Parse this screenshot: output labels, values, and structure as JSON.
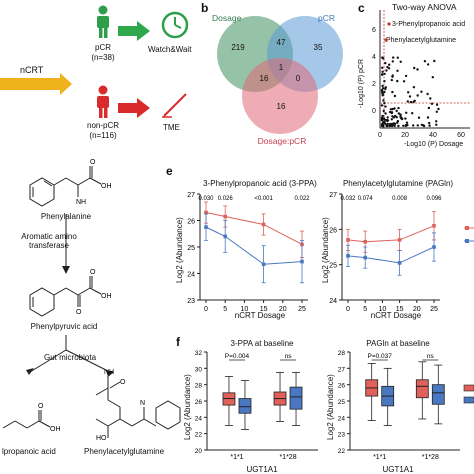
{
  "panel_a": {
    "input": "nCRT",
    "pcr_label": "pCR",
    "pcr_n": "(n=38)",
    "npcr_label": "non-pCR",
    "npcr_n": "(n=116)",
    "outcome_pcr": "Watch&Wait",
    "outcome_npcr": "TME",
    "colors": {
      "pcr": "#2e9e4b",
      "npcr": "#d92b2b",
      "arrow_in": "#f0b21b"
    }
  },
  "panel_b": {
    "label": "b",
    "sets": [
      "Dosage",
      "pCR",
      "Dosage:pCR"
    ],
    "regions": {
      "dosage_only": "219",
      "pcr_only": "35",
      "inter_only": "16",
      "dosage_pcr": "47",
      "dosage_inter": "16",
      "pcr_inter": "0",
      "all": "1"
    },
    "colors": {
      "dosage": "#3f8f5f",
      "pcr": "#5b9bd5",
      "inter": "#e06a78"
    }
  },
  "panel_c": {
    "label": "c",
    "title": "Two-way ANOVA",
    "annot1": "3-Phenylpropanoic acid",
    "annot2": "Phenylacetylglutamine",
    "ylabel": "-Log10 (P) pCR",
    "xlabel": "-Log10 (P) Dosage",
    "yticks": [
      "0",
      "2",
      "4",
      "6"
    ],
    "xticks": [
      "0",
      "20",
      "40",
      "60"
    ]
  },
  "pathway": {
    "compound1": "Phenylalanine",
    "enzyme1": "Aromatic amino transferase",
    "compound2": "Phenylpyruvic acid",
    "enzyme2": "Gut microbiota",
    "compound3": "lpropanoic acid",
    "compound4": "Phenylacetylglutamine"
  },
  "panel_e": {
    "label": "e",
    "colors": {
      "red": "#e0605a",
      "blue": "#4a78c0"
    },
    "chart_data": [
      {
        "type": "line",
        "title": "3-Phenylpropanoic acid (3-PPA)",
        "xlabel": "nCRT Dosage",
        "ylabel": "Log2 (Abundance)",
        "x": [
          0,
          5,
          15,
          25
        ],
        "xticks": [
          "0",
          "5",
          "10",
          "15",
          "20",
          "25"
        ],
        "yticks": [
          "23",
          "24",
          "25",
          "26",
          "27"
        ],
        "ylim": [
          23,
          27
        ],
        "pvalues": [
          "0.030",
          "0.026",
          "<0.001",
          "0.022"
        ],
        "series": [
          {
            "values": [
              26.3,
              26.15,
              25.85,
              25.1
            ],
            "err": [
              0.4,
              0.4,
              0.4,
              0.5
            ]
          },
          {
            "values": [
              25.75,
              25.4,
              24.35,
              24.45
            ],
            "err": [
              0.5,
              0.6,
              0.7,
              0.8
            ]
          }
        ]
      },
      {
        "type": "line",
        "title": "Phenylacetylglutamine (PAGln)",
        "xlabel": "nCRT Dosage",
        "ylabel": "Log2 (Abundance)",
        "x": [
          0,
          5,
          15,
          25
        ],
        "xticks": [
          "0",
          "5",
          "10",
          "15",
          "20",
          "25"
        ],
        "yticks": [
          "24",
          "25",
          "26",
          "27"
        ],
        "ylim": [
          24,
          27
        ],
        "pvalues": [
          "0.032",
          "0.074",
          "0.008",
          "0.096"
        ],
        "series": [
          {
            "values": [
              25.7,
              25.65,
              25.7,
              26.1
            ],
            "err": [
              0.3,
              0.3,
              0.3,
              0.4
            ]
          },
          {
            "values": [
              25.25,
              25.2,
              25.05,
              25.5
            ],
            "err": [
              0.3,
              0.3,
              0.35,
              0.4
            ]
          }
        ]
      }
    ]
  },
  "panel_f": {
    "label": "f",
    "chart_data": [
      {
        "type": "box",
        "title": "3-PPA at baseline",
        "ylabel": "Log2 (Abundance)",
        "xlabel": "UGT1A1",
        "categories": [
          "*1*1",
          "*1*28"
        ],
        "yticks": [
          "20",
          "22",
          "24",
          "26",
          "28",
          "30",
          "32"
        ],
        "ylim": [
          20,
          32
        ],
        "annotations": [
          "P=0.004",
          "ns"
        ],
        "series": [
          {
            "name": "red",
            "boxes": [
              [
                23,
                25.5,
                26.3,
                27,
                29
              ],
              [
                23.5,
                25.5,
                26.3,
                27.1,
                29.5
              ]
            ]
          },
          {
            "name": "blue",
            "boxes": [
              [
                22.5,
                24.5,
                25.3,
                26.3,
                28.5
              ],
              [
                23,
                25,
                26.5,
                27.7,
                29.5
              ]
            ]
          }
        ]
      },
      {
        "type": "box",
        "title": "PAGln at baseline",
        "ylabel": "Log2 (Abundance)",
        "xlabel": "UGT1A1",
        "categories": [
          "*1*1",
          "*1*28"
        ],
        "yticks": [
          "22",
          "23",
          "24",
          "25",
          "26",
          "27",
          "28"
        ],
        "ylim": [
          22,
          28
        ],
        "annotations": [
          "P=0.037",
          "ns"
        ],
        "series": [
          {
            "name": "red",
            "boxes": [
              [
                23.8,
                25.3,
                25.8,
                26.3,
                27.3
              ],
              [
                23.9,
                25.2,
                25.9,
                26.3,
                27.4
              ]
            ]
          },
          {
            "name": "blue",
            "boxes": [
              [
                23.5,
                24.7,
                25.3,
                25.9,
                27
              ],
              [
                23.6,
                24.8,
                25.5,
                26,
                27.2
              ]
            ]
          }
        ]
      }
    ]
  }
}
